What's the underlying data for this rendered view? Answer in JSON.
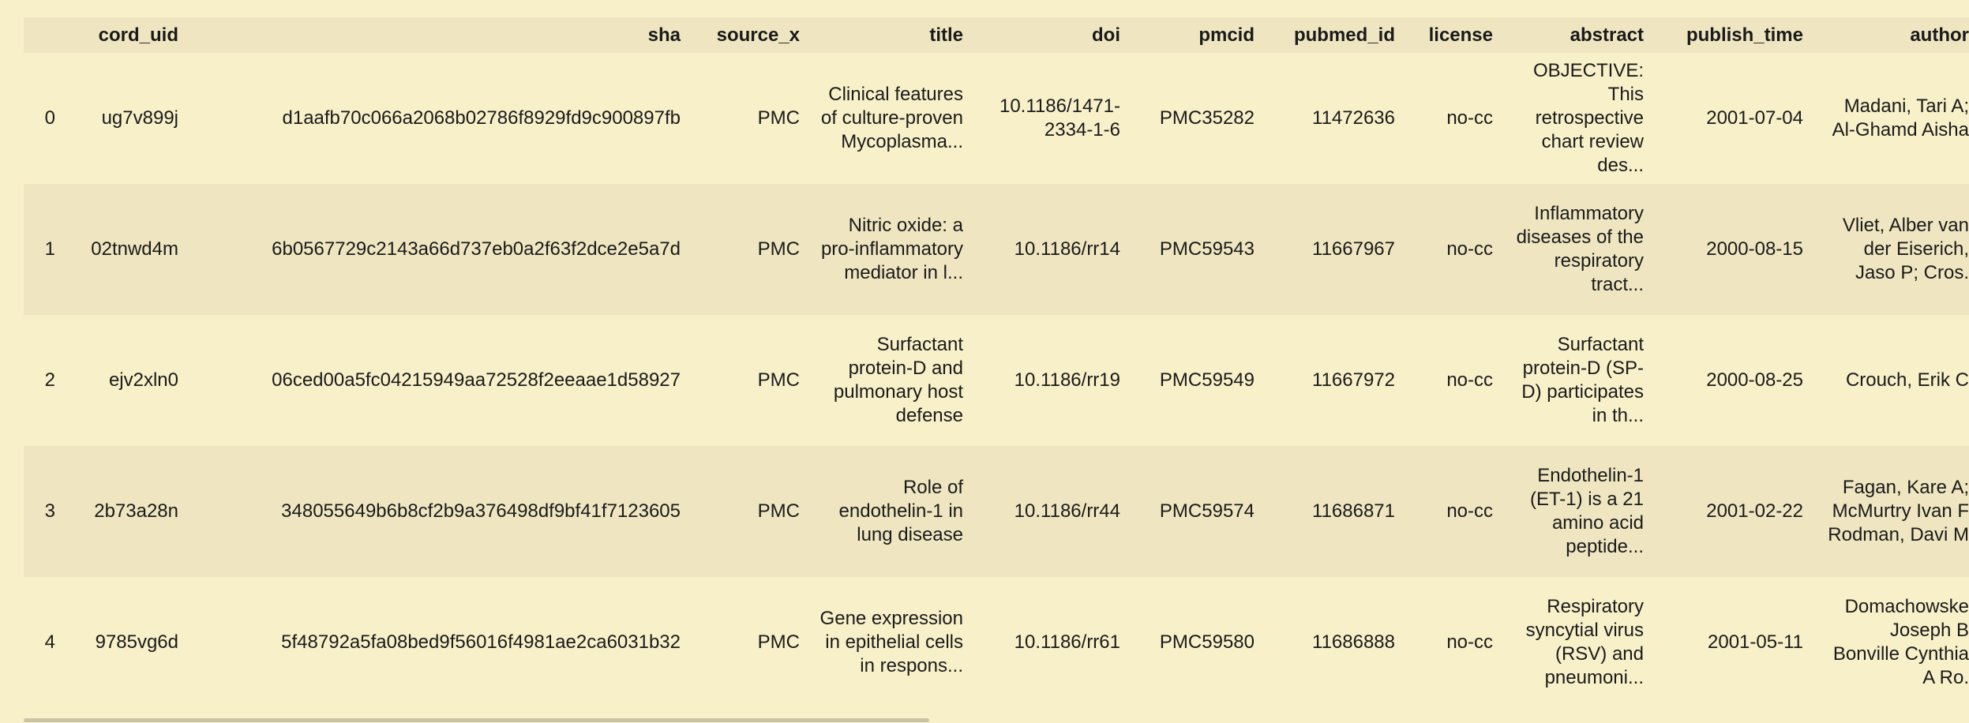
{
  "table": {
    "columns": [
      "cord_uid",
      "sha",
      "source_x",
      "title",
      "doi",
      "pmcid",
      "pubmed_id",
      "license",
      "abstract",
      "publish_time",
      "author"
    ],
    "rows": [
      [
        "0",
        "ug7v899j",
        "d1aafb70c066a2068b02786f8929fd9c900897fb",
        "PMC",
        "Clinical features of culture-proven Mycoplasma...",
        "10.1186/1471-2334-1-6",
        "PMC35282",
        "11472636",
        "no-cc",
        "OBJECTIVE: This retrospective chart review des...",
        "2001-07-04",
        "Madani, Tari A; Al-Ghamd Aisha"
      ],
      [
        "1",
        "02tnwd4m",
        "6b0567729c2143a66d737eb0a2f63f2dce2e5a7d",
        "PMC",
        "Nitric oxide: a pro-inflammatory mediator in l...",
        "10.1186/rr14",
        "PMC59543",
        "11667967",
        "no-cc",
        "Inflammatory diseases of the respiratory tract...",
        "2000-08-15",
        "Vliet, Alber van der Eiserich, Jaso P; Cros."
      ],
      [
        "2",
        "ejv2xln0",
        "06ced00a5fc04215949aa72528f2eeaae1d58927",
        "PMC",
        "Surfactant protein-D and pulmonary host defense",
        "10.1186/rr19",
        "PMC59549",
        "11667972",
        "no-cc",
        "Surfactant protein-D (SP-D) participates in th...",
        "2000-08-25",
        "Crouch, Erik C"
      ],
      [
        "3",
        "2b73a28n",
        "348055649b6b8cf2b9a376498df9bf41f7123605",
        "PMC",
        "Role of endothelin-1 in lung disease",
        "10.1186/rr44",
        "PMC59574",
        "11686871",
        "no-cc",
        "Endothelin-1 (ET-1) is a 21 amino acid peptide...",
        "2001-02-22",
        "Fagan, Kare A; McMurtry Ivan F Rodman, Davi M"
      ],
      [
        "4",
        "9785vg6d",
        "5f48792a5fa08bed9f56016f4981ae2ca6031b32",
        "PMC",
        "Gene expression in epithelial cells in respons...",
        "10.1186/rr61",
        "PMC59580",
        "11686888",
        "no-cc",
        "Respiratory syncytial virus (RSV) and pneumoni...",
        "2001-05-11",
        "Domachowske Joseph B Bonville Cynthia A Ro."
      ]
    ]
  }
}
